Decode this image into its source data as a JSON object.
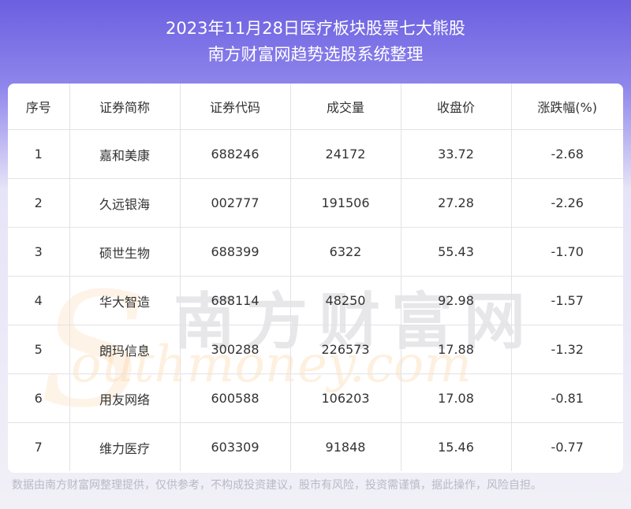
{
  "header": {
    "title": "2023年11月28日医疗板块股票七大熊股",
    "subtitle": "南方财富网趋势选股系统整理"
  },
  "table": {
    "columns": [
      "序号",
      "证券简称",
      "证券代码",
      "成交量",
      "收盘价",
      "涨跌幅(%)"
    ],
    "rows": [
      [
        "1",
        "嘉和美康",
        "688246",
        "24172",
        "33.72",
        "-2.68"
      ],
      [
        "2",
        "久远银海",
        "002777",
        "191506",
        "27.28",
        "-2.26"
      ],
      [
        "3",
        "硕世生物",
        "688399",
        "6322",
        "55.43",
        "-1.70"
      ],
      [
        "4",
        "华大智造",
        "688114",
        "48250",
        "92.98",
        "-1.57"
      ],
      [
        "5",
        "朗玛信息",
        "300288",
        "226573",
        "17.88",
        "-1.32"
      ],
      [
        "6",
        "用友网络",
        "600588",
        "106203",
        "17.08",
        "-0.81"
      ],
      [
        "7",
        "维力医疗",
        "603309",
        "91848",
        "15.46",
        "-0.77"
      ]
    ]
  },
  "watermark": {
    "cn": "南方财富网",
    "en": "outhmoney.com",
    "letter": "S"
  },
  "footer": {
    "disclaimer": "数据由南方财富网整理提供，仅供参考，不构成投资建议，股市有风险，投资需谨慎，据此操作，风险自担。"
  },
  "colors": {
    "header_gradient_top": "#6c5fe0",
    "page_bottom": "#f1f0f7",
    "text": "#333333",
    "grid": "#e3e3e8"
  }
}
